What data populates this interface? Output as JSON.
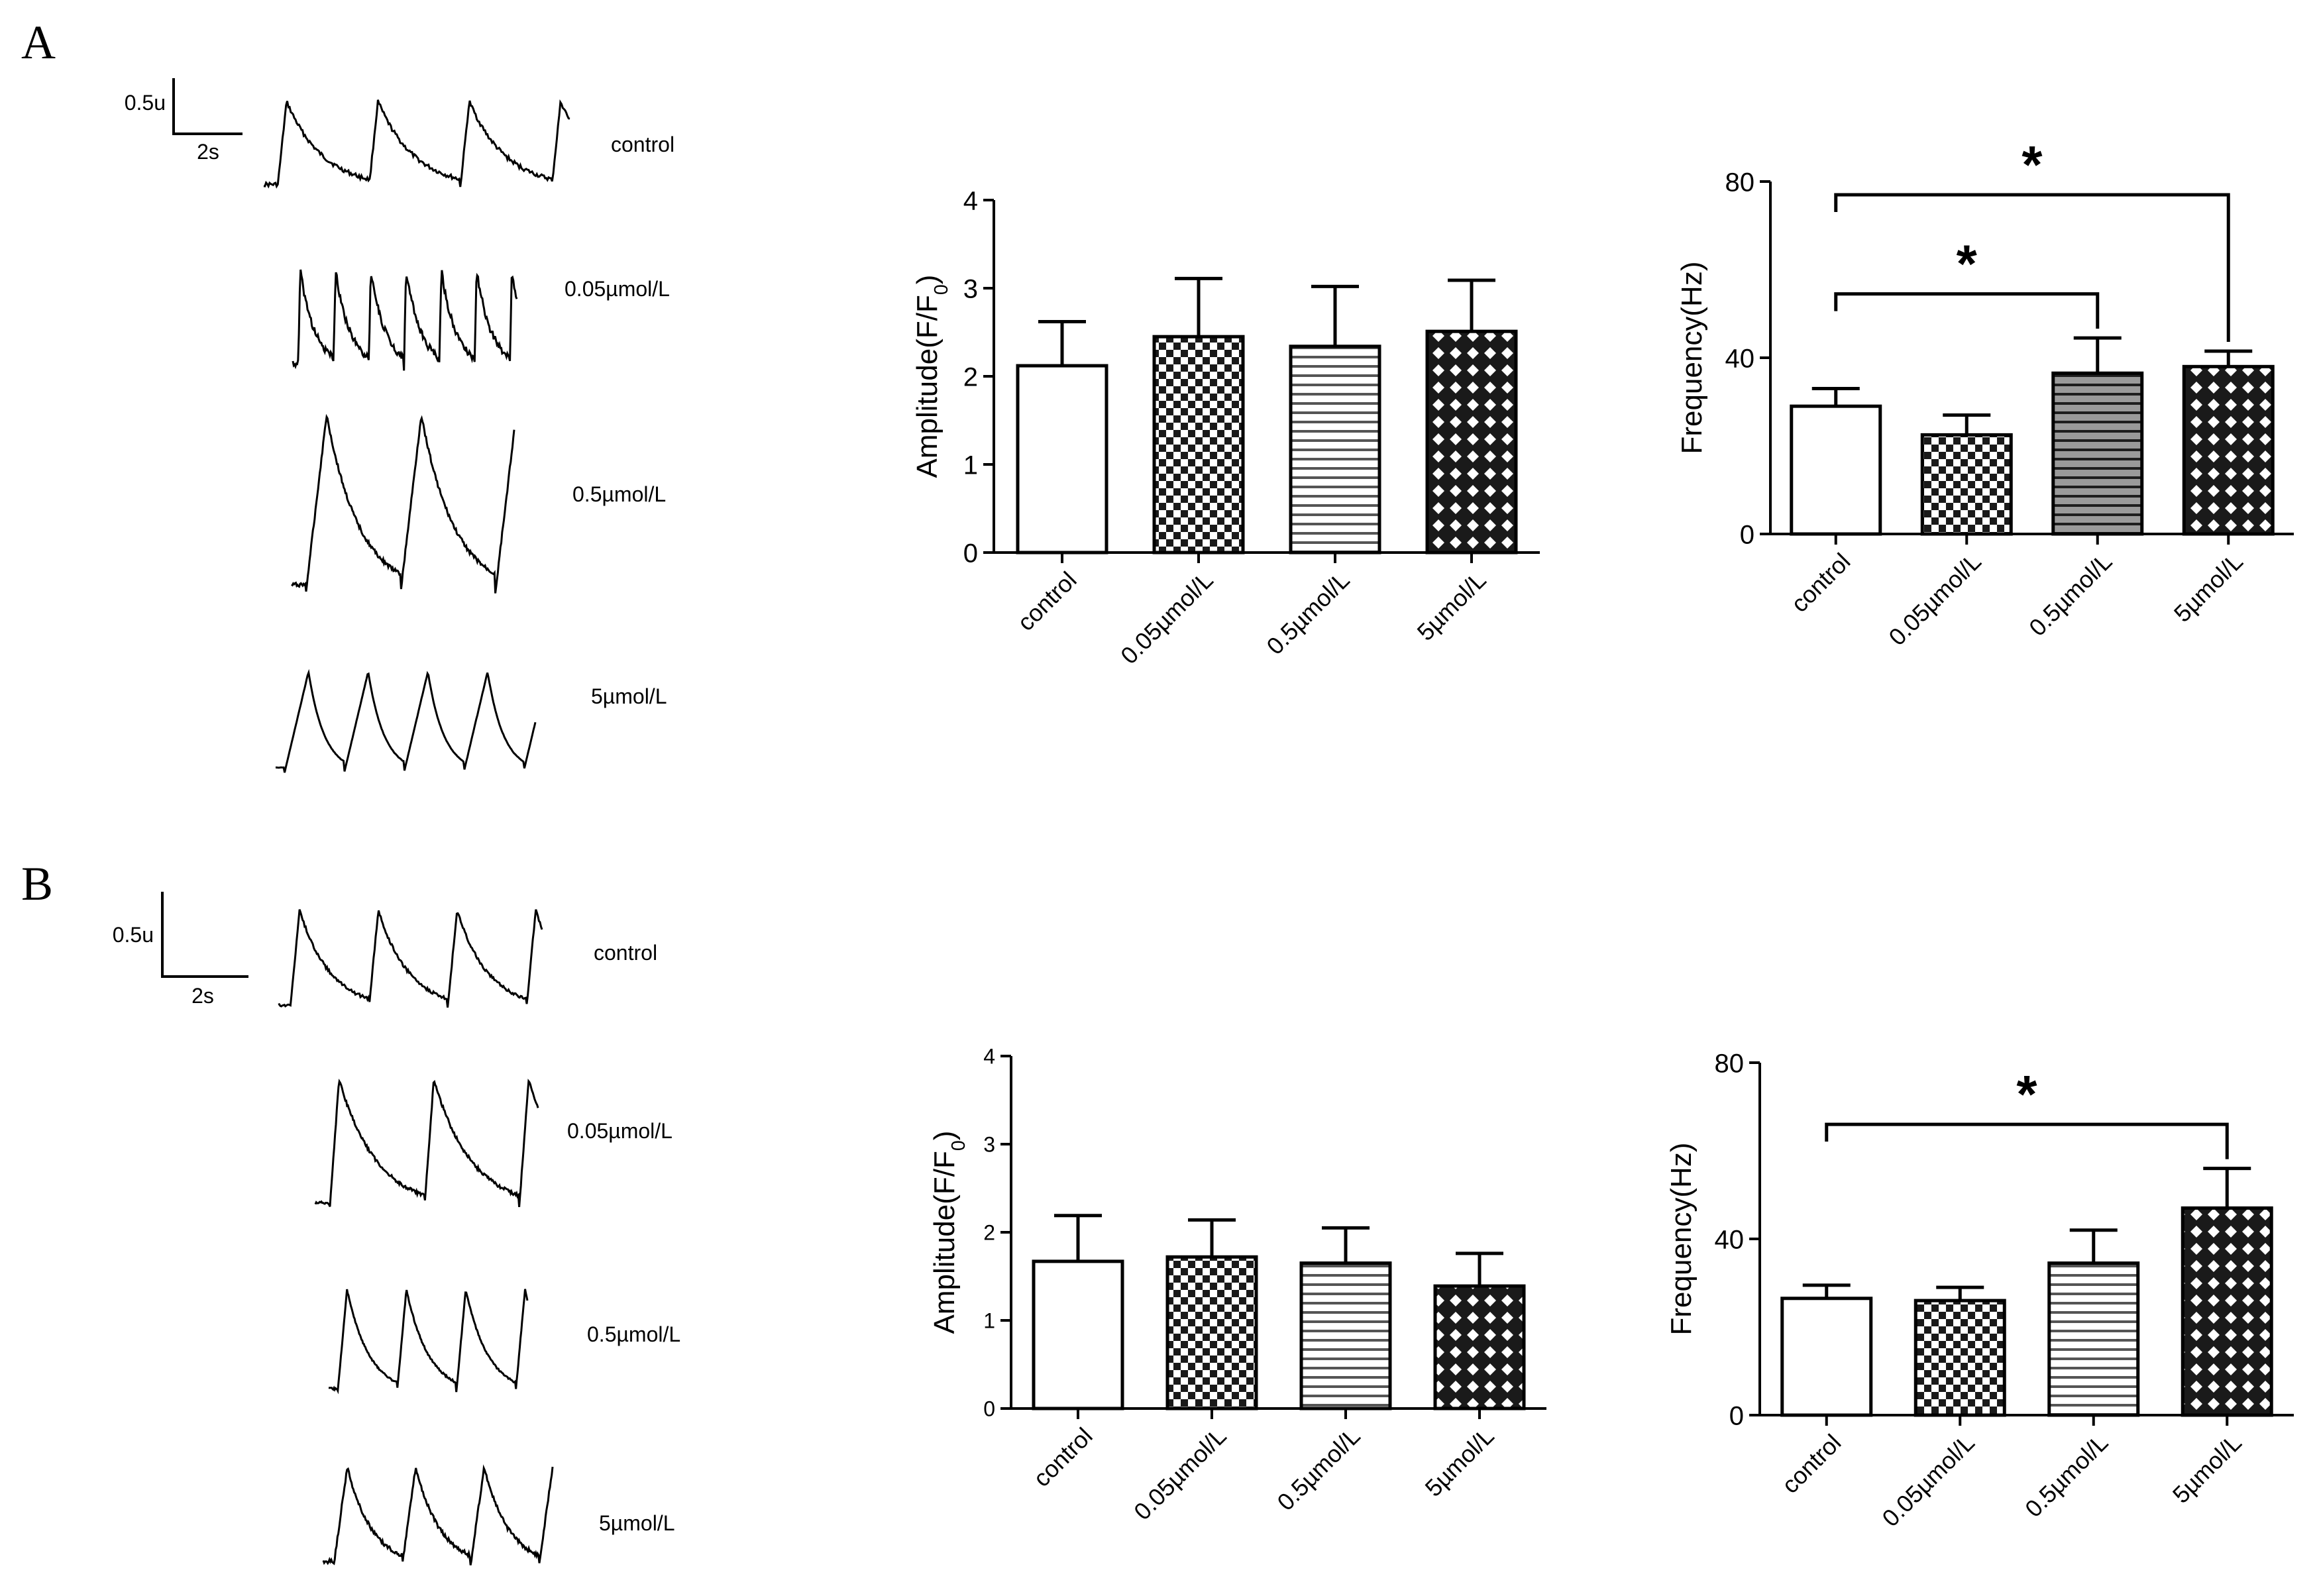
{
  "panels": [
    {
      "letter": "A",
      "scale_bar": {
        "amplitude_label": "0.5u",
        "time_label": "2s"
      },
      "traces": [
        {
          "label": "control",
          "peaks": 3
        },
        {
          "label": "0.05µmol/L",
          "peaks": 6
        },
        {
          "label": "0.5µmol/L",
          "peaks": 2
        },
        {
          "label": "5µmol/L",
          "peaks": 4
        }
      ]
    },
    {
      "letter": "B",
      "scale_bar": {
        "amplitude_label": "0.5u",
        "time_label": "2s"
      },
      "traces": [
        {
          "label": "control",
          "peaks": 3
        },
        {
          "label": "0.05µmol/L",
          "peaks": 2
        },
        {
          "label": "0.5µmol/L",
          "peaks": 3
        },
        {
          "label": "5µmol/L",
          "peaks": 3
        }
      ]
    }
  ],
  "chart_data": [
    {
      "id": "A-amplitude",
      "panel": "A",
      "type": "bar",
      "categories": [
        "control",
        "0.05µmol/L",
        "0.5µmol/L",
        "5µmol/L"
      ],
      "values": [
        2.12,
        2.45,
        2.34,
        2.51
      ],
      "errors": [
        0.5,
        0.66,
        0.68,
        0.58
      ],
      "patterns": [
        "none",
        "check",
        "hlines",
        "diamond"
      ],
      "ylabel_main": "Amplitude(F/F",
      "ylabel_sub": "0",
      "ylabel_end": ")",
      "ylim": [
        0,
        4
      ],
      "yticks": [
        0,
        1,
        2,
        3,
        4
      ],
      "significance": []
    },
    {
      "id": "A-frequency",
      "panel": "A",
      "type": "bar",
      "categories": [
        "control",
        "0.05µmol/L",
        "0.5µmol/L",
        "5µmol/L"
      ],
      "values": [
        29,
        22.5,
        36.5,
        38
      ],
      "errors": [
        4,
        4.5,
        8,
        3.5
      ],
      "patterns": [
        "none",
        "check",
        "hlines-dark",
        "diamond"
      ],
      "ylabel_main": "Frequency(Hz)",
      "ylabel_sub": "",
      "ylabel_end": "",
      "ylim": [
        0,
        80
      ],
      "yticks": [
        0,
        40,
        80
      ],
      "significance": [
        {
          "from": 0,
          "to": 3,
          "bracket_y": 77,
          "label": "*"
        },
        {
          "from": 0,
          "to": 2,
          "bracket_y": 54.5,
          "label": "*"
        }
      ]
    },
    {
      "id": "B-amplitude",
      "panel": "B",
      "type": "bar",
      "categories": [
        "control",
        "0.05µmol/L",
        "0.5µmol/L",
        "5µmol/L"
      ],
      "values": [
        1.67,
        1.72,
        1.65,
        1.39
      ],
      "errors": [
        0.52,
        0.42,
        0.4,
        0.37
      ],
      "patterns": [
        "none",
        "check",
        "hlines",
        "diamond"
      ],
      "ylabel_main": "Amplitude(F/F",
      "ylabel_sub": "0",
      "ylabel_end": ")",
      "ylim": [
        0,
        4
      ],
      "yticks": [
        0,
        1,
        2,
        3,
        4
      ],
      "significance": []
    },
    {
      "id": "B-frequency",
      "panel": "B",
      "type": "bar",
      "categories": [
        "control",
        "0.05µmol/L",
        "0.5µmol/L",
        "5µmol/L"
      ],
      "values": [
        26.5,
        26,
        34.5,
        47
      ],
      "errors": [
        3,
        3,
        7.5,
        9
      ],
      "patterns": [
        "none",
        "check",
        "hlines",
        "diamond"
      ],
      "ylabel_main": "Frequency(Hz)",
      "ylabel_sub": "",
      "ylabel_end": "",
      "ylim": [
        0,
        80
      ],
      "yticks": [
        0,
        40,
        80
      ],
      "significance": [
        {
          "from": 0,
          "to": 3,
          "bracket_y": 66,
          "label": "*"
        }
      ]
    }
  ]
}
